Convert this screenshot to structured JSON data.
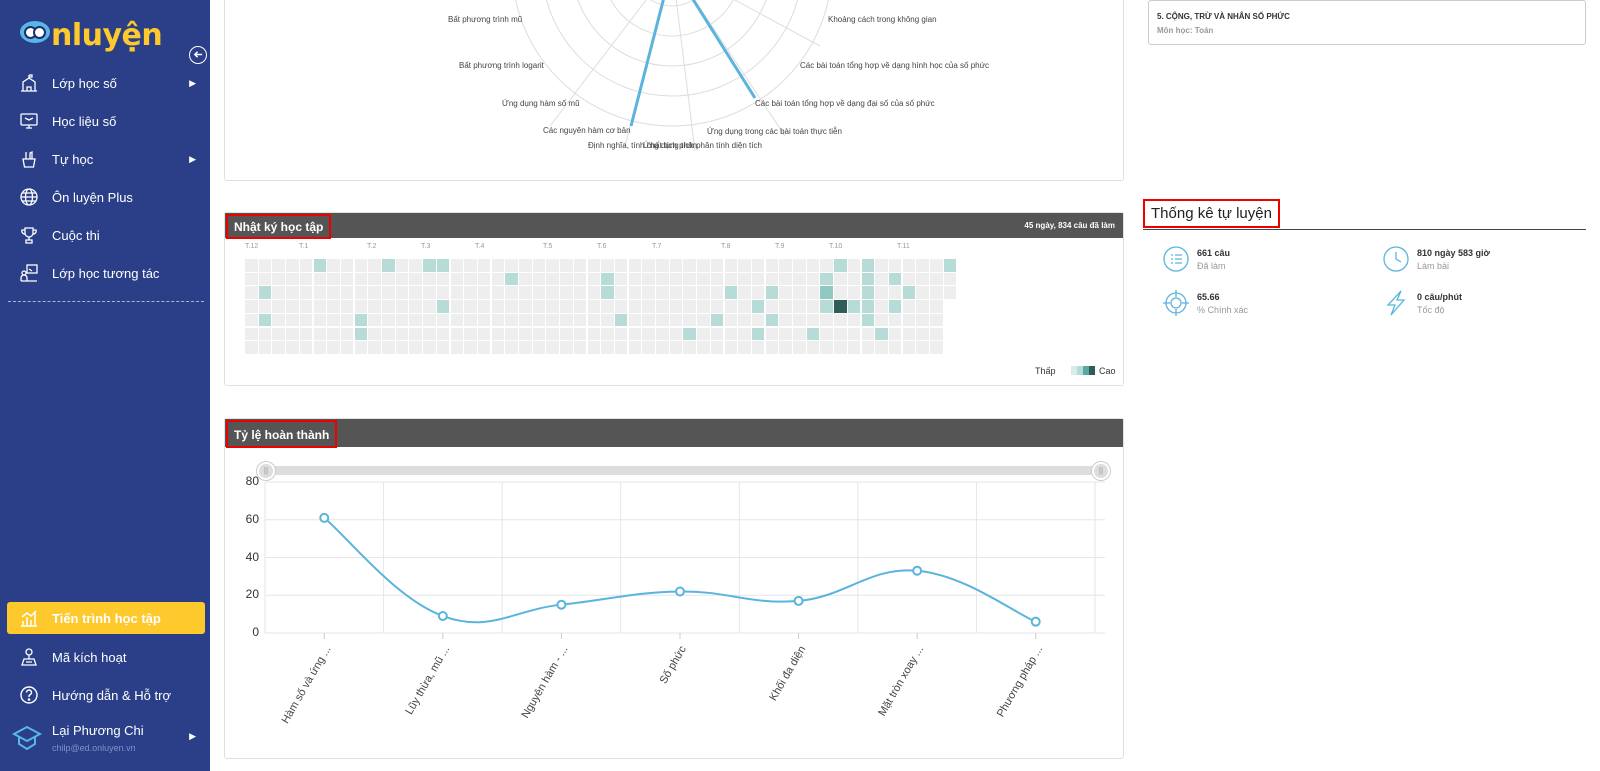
{
  "sidebar": {
    "logo_prefix": "n",
    "logo_suffix": "luyện",
    "items": [
      {
        "label": "Lớp học số",
        "icon": "school-icon",
        "arrow": "▶"
      },
      {
        "label": "Học liệu số",
        "icon": "monitor-book-icon"
      },
      {
        "label": "Tự học",
        "icon": "pencil-cup-icon",
        "arrow": "▶"
      },
      {
        "label": "Ôn luyện Plus",
        "icon": "globe-icon"
      },
      {
        "label": "Cuộc thi",
        "icon": "trophy-icon"
      },
      {
        "label": "Lớp học tương tác",
        "icon": "interactive-class-icon"
      }
    ],
    "bottom_items": [
      {
        "label": "Tiến trình học tập",
        "icon": "progress-chart-icon",
        "active": true
      },
      {
        "label": "Mã kích hoạt",
        "icon": "activation-key-icon"
      },
      {
        "label": "Hướng dẫn & Hỗ trợ",
        "icon": "help-icon"
      }
    ],
    "user": {
      "name": "Lại Phương Chi",
      "email": "chilp@ed.onluyen.vn",
      "arrow": "▶"
    },
    "colors": {
      "bg": "#2a3f87",
      "accent": "#fdc92c"
    }
  },
  "radar": {
    "labels": [
      "Bất phương trình mũ",
      "Khoảng cách trong không gian",
      "Bất phương trình logarit",
      "Các bài toán tổng hợp về dạng hình học của số phức",
      "Ứng dụng hàm số mũ",
      "Các bài toán tổng hợp về dạng đại số của số phức",
      "Các nguyên hàm cơ bản",
      "Ứng dụng trong các bài toán thực tiễn",
      "Định nghĩa, tính chất tích phân",
      "Ứng dụng tích phân tính diện tích"
    ]
  },
  "study_log": {
    "title": "Nhật ký học tập",
    "summary": "45 ngày, 834 câu đã làm",
    "months": [
      "T.12",
      "T.1",
      "T.2",
      "T.3",
      "T.4",
      "T.5",
      "T.6",
      "T.7",
      "T.8",
      "T.9",
      "T.10",
      "T.11"
    ],
    "legend_low": "Thấp",
    "legend_high": "Cao",
    "colors": {
      "empty": "#eeeeee",
      "l1": "#b7dcd7",
      "l2": "#8fc9c1",
      "l3": "#2f5e58"
    }
  },
  "completion": {
    "title": "Tỷ lệ hoàn thành"
  },
  "chart_data": {
    "type": "line",
    "categories": [
      "Hàm số và ứng ...",
      "Lũy thừa, mũ ...",
      "Nguyên hàm - ...",
      "Số phức",
      "Khối đa diện",
      "Mặt tròn xoay ...",
      "Phương pháp ..."
    ],
    "values": [
      61,
      9,
      15,
      22,
      17,
      33,
      6
    ],
    "ylim": [
      0,
      80
    ],
    "yticks": [
      "0",
      "20",
      "40",
      "60",
      "80"
    ],
    "color": "#5ab4dc",
    "grid": true
  },
  "subject_card": {
    "title": "5. CỘNG, TRỪ VÀ NHÂN SỐ PHỨC",
    "subject": "Môn học: Toán"
  },
  "self_practice": {
    "title": "Thống kê tự luyện",
    "stats": [
      {
        "value": "661 câu",
        "label": "Đã làm",
        "icon": "list-icon"
      },
      {
        "value": "810 ngày 583 giờ",
        "label": "Làm bài",
        "icon": "clock-icon"
      },
      {
        "value": "65.66",
        "label": "% Chính xác",
        "icon": "target-icon"
      },
      {
        "value": "0 câu/phút",
        "label": "Tốc độ",
        "icon": "lightning-icon"
      }
    ]
  }
}
